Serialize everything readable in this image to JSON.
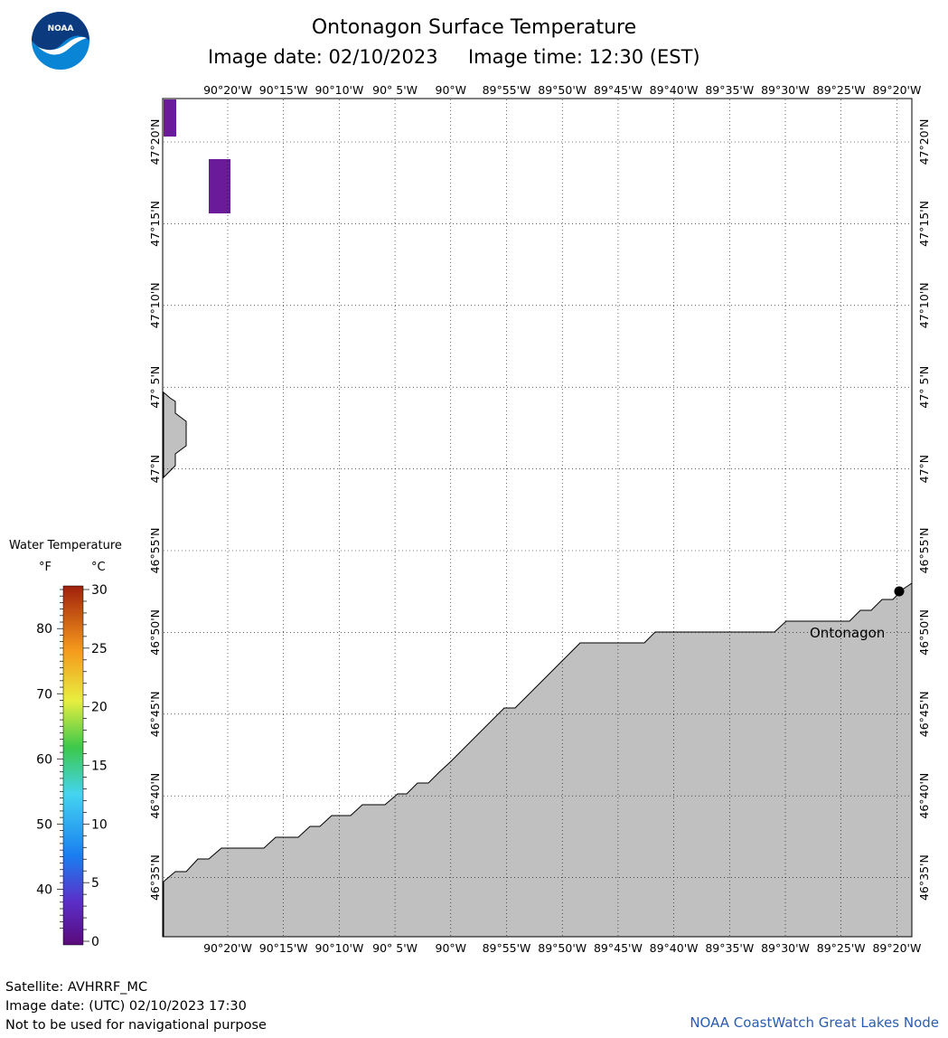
{
  "header": {
    "title": "Ontonagon Surface Temperature",
    "subtitle": "Image date: 02/10/2023     Image time: 12:30 (EST)"
  },
  "logo": {
    "text": "NOAA",
    "icon": "noaa-logo-icon",
    "colors": {
      "blue": "#0a85d6",
      "navy": "#0b3a7e"
    }
  },
  "map": {
    "lon_labels": [
      "90°20'W",
      "90°15'W",
      "90°10'W",
      "90° 5'W",
      "90°W",
      "89°55'W",
      "89°50'W",
      "89°45'W",
      "89°40'W",
      "89°35'W",
      "89°30'W",
      "89°25'W",
      "89°20'W"
    ],
    "lat_labels": [
      "47°20'N",
      "47°15'N",
      "47°10'N",
      "47° 5'N",
      "47°N",
      "46°55'N",
      "46°50'N",
      "46°45'N",
      "46°40'N",
      "46°35'N"
    ],
    "place_label": "Ontonagon",
    "land_color": "#c0c0c0",
    "cold_water_color": "#6a1b9a"
  },
  "legend": {
    "title": "Water Temperature",
    "unit_f": "°F",
    "unit_c": "°C",
    "f_ticks": [
      "80",
      "70",
      "60",
      "50",
      "40"
    ],
    "c_ticks": [
      "30",
      "25",
      "20",
      "15",
      "10",
      "5",
      "0"
    ]
  },
  "footer": {
    "satellite": "Satellite: AVHRRF_MC",
    "utc_date": "Image date: (UTC) 02/10/2023  17:30",
    "disclaimer": "Not to be used for navigational purpose",
    "credit": "NOAA CoastWatch Great Lakes Node"
  }
}
